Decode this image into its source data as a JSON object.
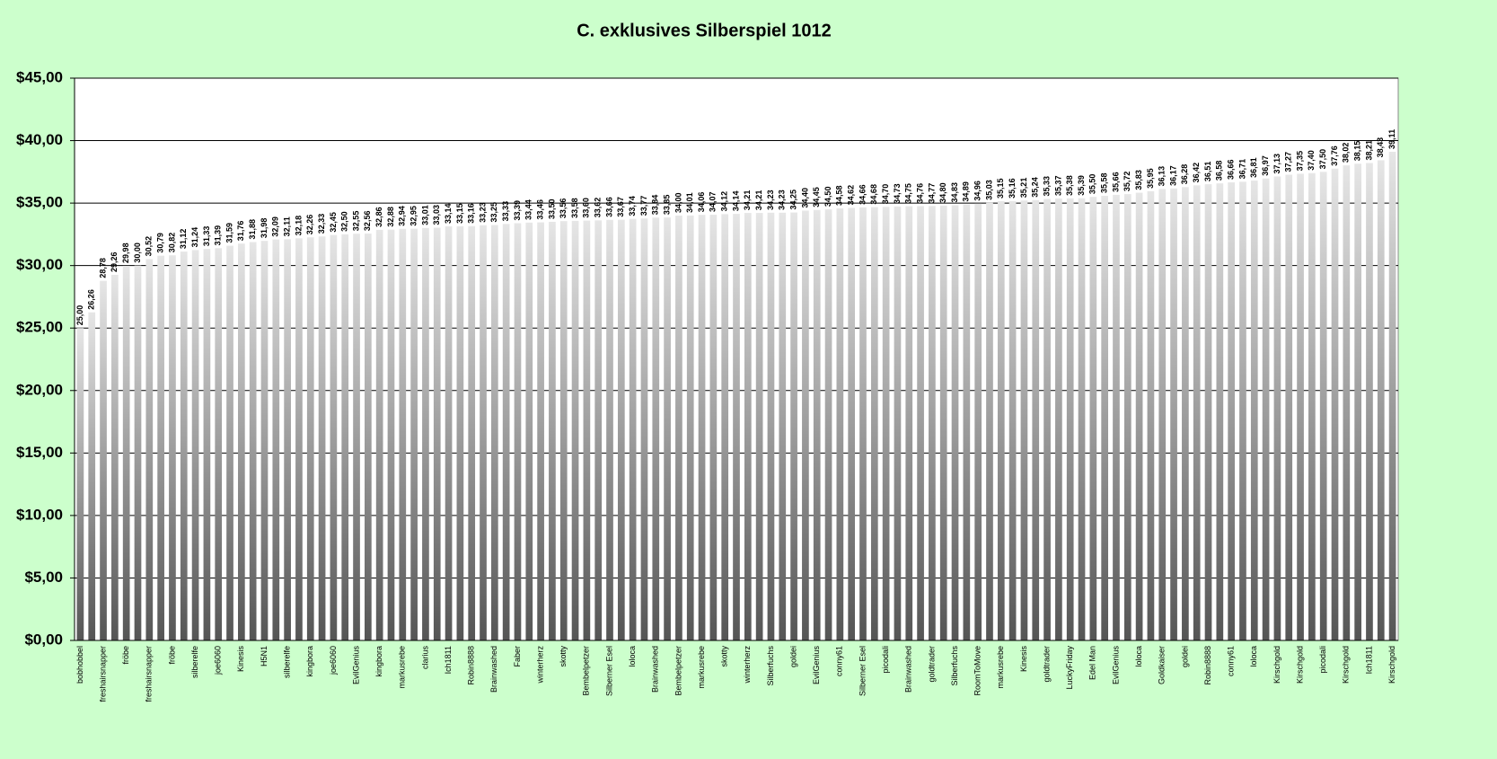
{
  "chart_data": {
    "type": "bar",
    "title": "C. exklusives Silberspiel 1012",
    "categories": [
      "bobhobbel",
      null,
      "freshairsnapper",
      null,
      "fröbe",
      null,
      "freshairsnapper",
      null,
      "fröbe",
      null,
      "silberelfe",
      null,
      "joe6060",
      null,
      "Kinesis",
      null,
      "H5N1",
      null,
      "silberelfe",
      null,
      "kingbora",
      null,
      "joe6060",
      null,
      "EvilGenius",
      null,
      "kingbora",
      null,
      "markusrebe",
      null,
      "clarius",
      null,
      "Ich1811",
      null,
      "Robin8888",
      null,
      "Brainwashed",
      null,
      "Faber",
      null,
      "winterherz",
      null,
      "skotty",
      null,
      "Bembelpetzer",
      null,
      "Silberner Esel",
      null,
      "loloca",
      null,
      "Brainwashed",
      null,
      "Bembelpetzer",
      null,
      "markusrebe",
      null,
      "skotty",
      null,
      "winterherz",
      null,
      "Silberfuchs",
      null,
      "goldei",
      null,
      "EvilGenius",
      null,
      "conny61",
      null,
      "Silberner Esel",
      null,
      "picodali",
      null,
      "Brainwashed",
      null,
      "goldtrader",
      null,
      "Silberfuchs",
      null,
      "RoomToMove",
      null,
      "markusrebe",
      null,
      "Kinesis",
      null,
      "goldtrader",
      null,
      "LuckyFriday",
      null,
      "Edel Man",
      null,
      "EvilGenius",
      null,
      "loloca",
      null,
      "Goldkaiser",
      null,
      "goldei",
      null,
      "Robin8888",
      null,
      "conny61",
      null,
      "loloca",
      null,
      "Kirschgold",
      null,
      "Kirschgold",
      null,
      "picodali",
      null,
      "Kirschgold",
      null,
      "Ich1811",
      null,
      "Kirschgold"
    ],
    "values": [
      25.0,
      26.26,
      28.78,
      29.26,
      29.98,
      30.0,
      30.52,
      30.79,
      30.82,
      31.12,
      31.24,
      31.33,
      31.39,
      31.59,
      31.76,
      31.88,
      31.98,
      32.09,
      32.11,
      32.18,
      32.26,
      32.33,
      32.45,
      32.5,
      32.55,
      32.56,
      32.86,
      32.88,
      32.94,
      32.95,
      33.01,
      33.03,
      33.14,
      33.15,
      33.16,
      33.23,
      33.25,
      33.33,
      33.39,
      33.44,
      33.46,
      33.5,
      33.56,
      33.58,
      33.6,
      33.62,
      33.66,
      33.67,
      33.74,
      33.77,
      33.84,
      33.85,
      34.0,
      34.01,
      34.06,
      34.07,
      34.12,
      34.14,
      34.21,
      34.21,
      34.23,
      34.23,
      34.25,
      34.4,
      34.45,
      34.5,
      34.58,
      34.62,
      34.66,
      34.68,
      34.7,
      34.73,
      34.75,
      34.76,
      34.77,
      34.8,
      34.83,
      34.89,
      34.96,
      35.03,
      35.15,
      35.16,
      35.21,
      35.24,
      35.33,
      35.37,
      35.38,
      35.39,
      35.5,
      35.58,
      35.66,
      35.72,
      35.83,
      35.95,
      36.13,
      36.17,
      36.28,
      36.42,
      36.51,
      36.58,
      36.66,
      36.71,
      36.81,
      36.97,
      37.13,
      37.27,
      37.35,
      37.4,
      37.5,
      37.76,
      38.02,
      38.15,
      38.21,
      38.43,
      39.11
    ],
    "value_labels": [
      "25,00",
      "26,26",
      "28,78",
      "29,26",
      "29,98",
      "30,00",
      "30,52",
      "30,79",
      "30,82",
      "31,12",
      "31,24",
      "31,33",
      "31,39",
      "31,59",
      "31,76",
      "31,88",
      "31,98",
      "32,09",
      "32,11",
      "32,18",
      "32,26",
      "32,33",
      "32,45",
      "32,50",
      "32,55",
      "32,56",
      "32,86",
      "32,88",
      "32,94",
      "32,95",
      "33,01",
      "33,03",
      "33,14",
      "33,15",
      "33,16",
      "33,23",
      "33,25",
      "33,33",
      "33,39",
      "33,44",
      "33,46",
      "33,50",
      "33,56",
      "33,58",
      "33,60",
      "33,62",
      "33,66",
      "33,67",
      "33,74",
      "33,77",
      "33,84",
      "33,85",
      "34,00",
      "34,01",
      "34,06",
      "34,07",
      "34,12",
      "34,14",
      "34,21",
      "34,21",
      "34,23",
      "34,23",
      "34,25",
      "34,40",
      "34,45",
      "34,50",
      "34,58",
      "34,62",
      "34,66",
      "34,68",
      "34,70",
      "34,73",
      "34,75",
      "34,76",
      "34,77",
      "34,80",
      "34,83",
      "34,89",
      "34,96",
      "35,03",
      "35,15",
      "35,16",
      "35,21",
      "35,24",
      "35,33",
      "35,37",
      "35,38",
      "35,39",
      "35,50",
      "35,58",
      "35,66",
      "35,72",
      "35,83",
      "35,95",
      "36,13",
      "36,17",
      "36,28",
      "36,42",
      "36,51",
      "36,58",
      "36,66",
      "36,71",
      "36,81",
      "36,97",
      "37,13",
      "37,27",
      "37,35",
      "37,40",
      "37,50",
      "37,76",
      "38,02",
      "38,15",
      "38,21",
      "38,43",
      "39,11"
    ],
    "color": "#555555",
    "ylim": [
      0,
      45
    ],
    "yticks": [
      {
        "value": 0,
        "label": "$0,00"
      },
      {
        "value": 5,
        "label": "$5,00"
      },
      {
        "value": 10,
        "label": "$10,00"
      },
      {
        "value": 15,
        "label": "$15,00"
      },
      {
        "value": 20,
        "label": "$20,00"
      },
      {
        "value": 25,
        "label": "$25,00"
      },
      {
        "value": 30,
        "label": "$30,00"
      },
      {
        "value": 35,
        "label": "$35,00"
      },
      {
        "value": 40,
        "label": "$40,00"
      },
      {
        "value": 45,
        "label": "$45,00"
      }
    ],
    "grid": true
  }
}
